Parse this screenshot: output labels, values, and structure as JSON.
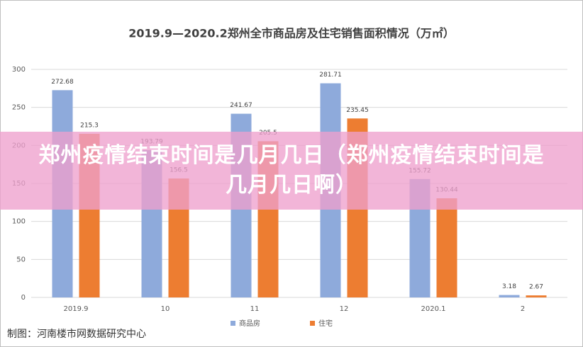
{
  "chart_data": {
    "type": "bar",
    "title": "2019.9—2020.2郑州全市商品房及住宅销售面积情况（万㎡）",
    "categories": [
      "2019.9",
      "10",
      "11",
      "12",
      "2020.1",
      "2"
    ],
    "series": [
      {
        "name": "商品房",
        "color": "#8eaadb",
        "values": [
          272.68,
          193.79,
          241.67,
          281.71,
          155.72,
          3.18
        ]
      },
      {
        "name": "住宅",
        "color": "#ed7d31",
        "values": [
          215.3,
          156.5,
          205.5,
          235.45,
          130.44,
          2.67
        ]
      }
    ],
    "ylim": [
      0,
      300
    ],
    "yticks": [
      0,
      50,
      100,
      150,
      200,
      250,
      300
    ],
    "grid": true,
    "legend": "bottom"
  },
  "overlay_title": "郑州疫情结束时间是几月几日（郑州疫情结束时间是几月几日啊）",
  "credit": "制图：河南楼市网数据研究中心"
}
